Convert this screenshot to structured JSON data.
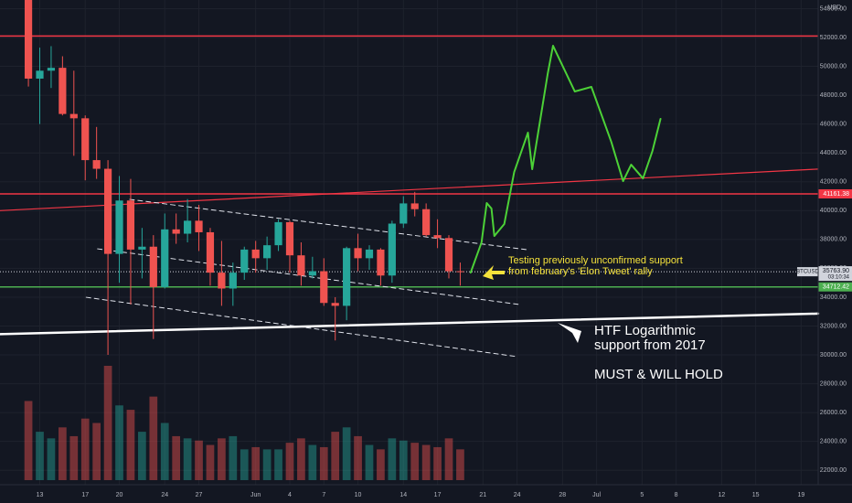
{
  "chart_data": {
    "type": "candlestick",
    "currency": "USD",
    "grid": true,
    "colors": {
      "up": "#26a69a",
      "down": "#ef5350"
    },
    "x": [
      "05-12",
      "05-13",
      "05-14",
      "05-15",
      "05-16",
      "05-17",
      "05-18",
      "05-19",
      "05-20",
      "05-21",
      "05-22",
      "05-23",
      "05-24",
      "05-25",
      "05-26",
      "05-27",
      "05-28",
      "05-29",
      "05-30",
      "05-31",
      "06-01",
      "06-02",
      "06-03",
      "06-04",
      "06-05",
      "06-06",
      "06-07",
      "06-08",
      "06-09",
      "06-10",
      "06-11",
      "06-12",
      "06-13",
      "06-14",
      "06-15",
      "06-16",
      "06-17",
      "06-18",
      "06-19"
    ],
    "open": [
      56700,
      49150,
      49700,
      49900,
      46700,
      46400,
      43500,
      42900,
      37000,
      40700,
      37300,
      37500,
      34700,
      38700,
      38400,
      39300,
      38500,
      35700,
      34600,
      35700,
      37300,
      36700,
      37600,
      39200,
      36900,
      35500,
      35800,
      33600,
      33400,
      37400,
      36700,
      37300,
      35500,
      39100,
      40500,
      40100,
      38300,
      38100,
      35800
    ],
    "high": [
      57900,
      51300,
      51400,
      50700,
      49700,
      46600,
      45800,
      43500,
      42400,
      42200,
      38800,
      38300,
      39800,
      39800,
      40800,
      40400,
      38800,
      37900,
      36400,
      37500,
      37900,
      38200,
      39400,
      39300,
      37800,
      36800,
      36700,
      34000,
      37500,
      38400,
      37600,
      37400,
      39300,
      41000,
      41300,
      40500,
      39400,
      38300,
      36400
    ],
    "low": [
      48600,
      46000,
      48500,
      46600,
      43800,
      42100,
      42200,
      30000,
      35000,
      33500,
      35300,
      31100,
      34600,
      37700,
      37800,
      37200,
      34800,
      33400,
      33400,
      35200,
      35700,
      35900,
      37200,
      35700,
      34800,
      35300,
      33400,
      31000,
      32400,
      35800,
      35900,
      34800,
      35000,
      38800,
      39600,
      38200,
      37400,
      35300,
      34800
    ],
    "close": [
      49150,
      49700,
      49900,
      46700,
      46400,
      43500,
      42900,
      37000,
      40700,
      37300,
      37500,
      34700,
      38700,
      38400,
      39300,
      38500,
      35700,
      34600,
      35700,
      37300,
      36700,
      37600,
      39200,
      36900,
      35500,
      35800,
      33600,
      33400,
      37400,
      36700,
      37300,
      35500,
      39100,
      40500,
      40100,
      38300,
      38100,
      35800,
      35763.9
    ],
    "volume": [
      180,
      110,
      95,
      120,
      100,
      140,
      130,
      260,
      170,
      160,
      110,
      190,
      130,
      100,
      95,
      90,
      80,
      95,
      100,
      70,
      75,
      70,
      70,
      85,
      95,
      80,
      75,
      110,
      120,
      100,
      80,
      70,
      95,
      90,
      85,
      80,
      75,
      95,
      70
    ],
    "ylim": [
      21000,
      54600
    ],
    "yticks": [
      {
        "value": 22000,
        "label": "22000.00"
      },
      {
        "value": 24000,
        "label": "24000.00"
      },
      {
        "value": 26000,
        "label": "26000.00"
      },
      {
        "value": 28000,
        "label": "28000.00"
      },
      {
        "value": 30000,
        "label": "30000.00"
      },
      {
        "value": 32000,
        "label": "32000.00"
      },
      {
        "value": 34000,
        "label": "34000.00"
      },
      {
        "value": 36000,
        "label": "36000.00"
      },
      {
        "value": 38000,
        "label": "38000.00"
      },
      {
        "value": 40000,
        "label": "40000.00"
      },
      {
        "value": 42000,
        "label": "42000.00"
      },
      {
        "value": 44000,
        "label": "44000.00"
      },
      {
        "value": 46000,
        "label": "46000.00"
      },
      {
        "value": 48000,
        "label": "48000.00"
      },
      {
        "value": 50000,
        "label": "50000.00"
      },
      {
        "value": 52000,
        "label": "52000.00"
      },
      {
        "value": 54000,
        "label": "54000.00"
      }
    ],
    "xlim": [
      "05-10",
      "07-21"
    ],
    "xticks": [
      {
        "value": "05-13",
        "label": "13"
      },
      {
        "value": "05-17",
        "label": "17"
      },
      {
        "value": "05-20",
        "label": "20"
      },
      {
        "value": "05-24",
        "label": "24"
      },
      {
        "value": "05-27",
        "label": "27"
      },
      {
        "value": "06-01",
        "label": "Jun"
      },
      {
        "value": "06-04",
        "label": "4"
      },
      {
        "value": "06-07",
        "label": "7"
      },
      {
        "value": "06-10",
        "label": "10"
      },
      {
        "value": "06-14",
        "label": "14"
      },
      {
        "value": "06-17",
        "label": "17"
      },
      {
        "value": "06-21",
        "label": "21"
      },
      {
        "value": "06-24",
        "label": "24"
      },
      {
        "value": "06-28",
        "label": "28"
      },
      {
        "value": "07-01",
        "label": "Jul"
      },
      {
        "value": "07-05",
        "label": "5"
      },
      {
        "value": "07-08",
        "label": "8"
      },
      {
        "value": "07-12",
        "label": "12"
      },
      {
        "value": "07-15",
        "label": "15"
      },
      {
        "value": "07-19",
        "label": "19"
      }
    ],
    "levels": [
      {
        "value": 52100,
        "color": "#f23645"
      },
      {
        "value": 41161.38,
        "color": "#f23645",
        "tag": true
      },
      {
        "value": 34712.42,
        "color": "#4caf50",
        "tag": true
      }
    ],
    "price_line": {
      "symbol": "BTCUSD",
      "value": 35763.9,
      "label": "35763.90",
      "countdown": "03:10:34"
    },
    "trendlines": [
      {
        "color": "#f23645",
        "width": 1.2,
        "dash": false,
        "points": [
          [
            "05-10 00:00",
            40000
          ],
          [
            "07-21 00:00",
            42880
          ]
        ]
      },
      {
        "color": "#ffffff",
        "width": 2.5,
        "dash": false,
        "points": [
          [
            "05-10 00:00",
            31440
          ],
          [
            "07-21 00:00",
            32860
          ]
        ]
      },
      {
        "color": "#e0e3eb",
        "width": 1,
        "dash": true,
        "points": [
          [
            "05-21 10:00",
            40777
          ],
          [
            "06-25 10:00",
            37289
          ]
        ]
      },
      {
        "color": "#e0e3eb",
        "width": 1,
        "dash": true,
        "points": [
          [
            "05-18 14:00",
            37352
          ],
          [
            "06-24 19:00",
            33484
          ]
        ]
      },
      {
        "color": "#e0e3eb",
        "width": 1,
        "dash": true,
        "points": [
          [
            "05-17 14:00",
            33992
          ],
          [
            "06-24 14:00",
            29870
          ]
        ]
      },
      {
        "color": "#4cd137",
        "width": 2,
        "dash": false,
        "points": [
          [
            "06-20 10:00",
            35704
          ],
          [
            "06-21 09:00",
            37796
          ],
          [
            "06-21 20:00",
            40523
          ],
          [
            "06-22 06:00",
            40143
          ],
          [
            "06-22 12:00",
            38240
          ],
          [
            "06-23 09:00",
            39065
          ],
          [
            "06-24 06:00",
            42679
          ],
          [
            "06-25 11:00",
            45406
          ],
          [
            "06-25 20:00",
            42869
          ],
          [
            "06-27 05:00",
            49527
          ],
          [
            "06-27 16:00",
            51429
          ],
          [
            "06-29 14:00",
            48259
          ],
          [
            "07-01 01:00",
            48576
          ],
          [
            "07-02 19:00",
            44771
          ],
          [
            "07-03 20:00",
            42045
          ],
          [
            "07-04 13:00",
            43186
          ],
          [
            "07-05 14:00",
            42235
          ],
          [
            "07-06 10:00",
            44137
          ],
          [
            "07-07 03:00",
            46357
          ]
        ]
      }
    ],
    "annotations": [
      {
        "color": "#f5e23b",
        "lines": [
          "Testing previously unconfirmed support",
          "from february's 'Elon Tweet' rally"
        ]
      },
      {
        "color": "#ffffff",
        "lines": [
          "HTF Logarithmic",
          "support from 2017",
          "",
          "MUST & WILL HOLD"
        ]
      }
    ]
  }
}
